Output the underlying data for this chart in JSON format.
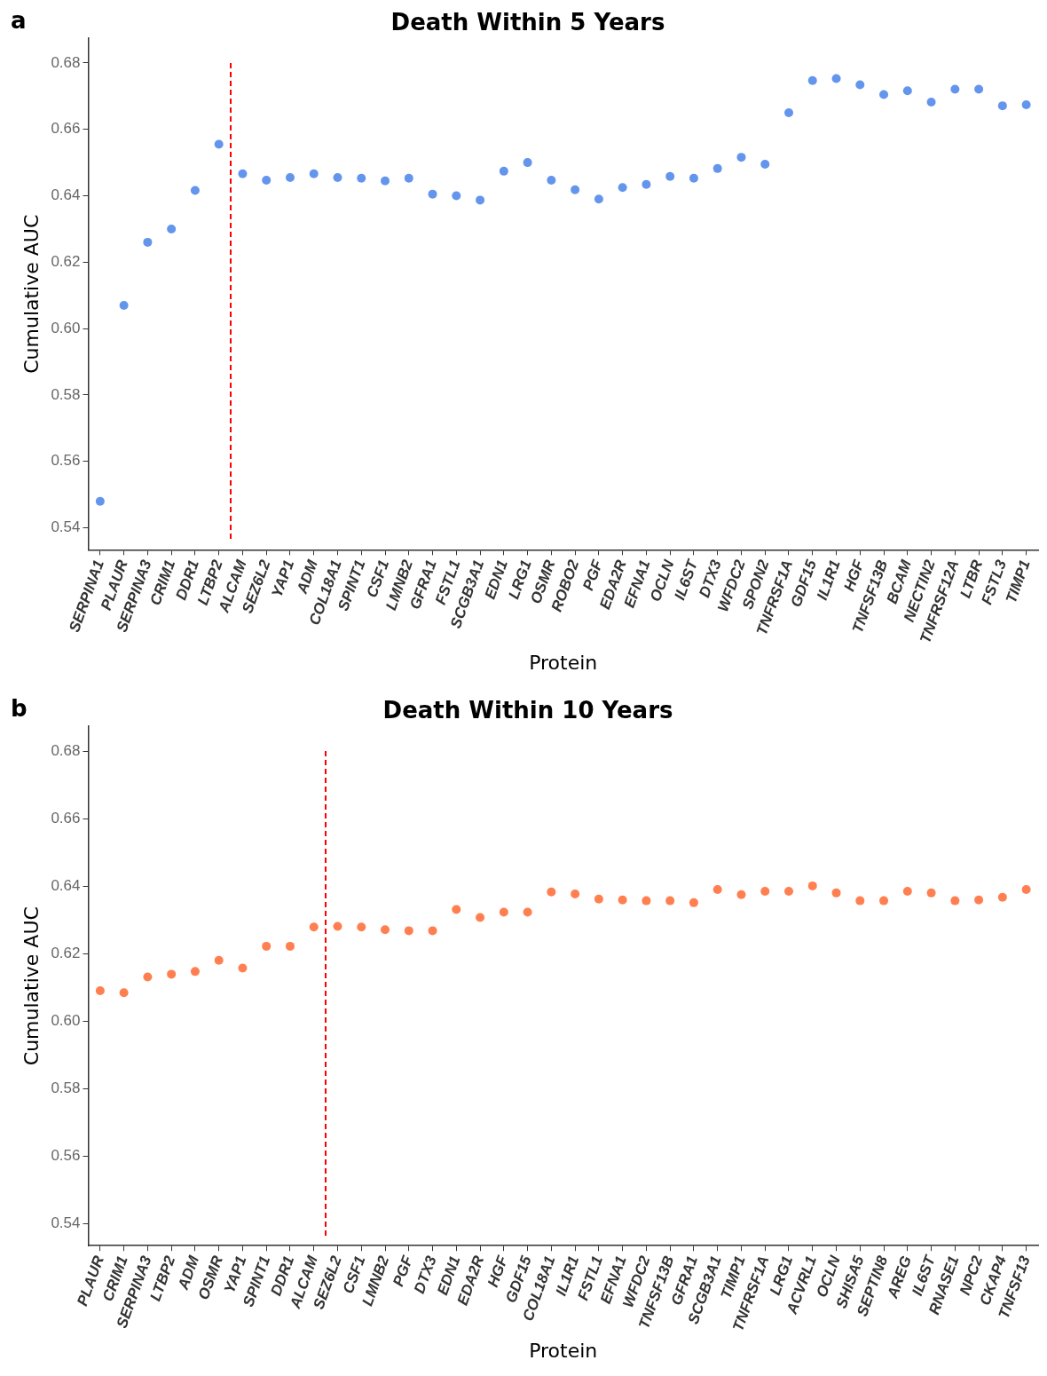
{
  "chart_data": [
    {
      "type": "scatter",
      "title": "Death Within 5 Years",
      "xlabel": "Protein",
      "ylabel": "Cumulative AUC",
      "annotations": [
        "a"
      ],
      "categories": [
        "SERPINA1",
        "PLAUR",
        "SERPINA3",
        "CRIM1",
        "DDR1",
        "LTBP2",
        "ALCAM",
        "SEZ6L2",
        "YAP1",
        "ADM",
        "COL18A1",
        "SPINT1",
        "CSF1",
        "LMNB2",
        "GFRA1",
        "FSTL1",
        "SCGB3A1",
        "EDN1",
        "LRG1",
        "OSMR",
        "ROBO2",
        "PGF",
        "EDA2R",
        "EFNA1",
        "OCLN",
        "IL6ST",
        "DTX3",
        "WFDC2",
        "SPON2",
        "TNFRSF1A",
        "GDF15",
        "IL1R1",
        "HGF",
        "TNFSF13B",
        "BCAM",
        "NECTIN2",
        "TNFRSF12A",
        "LTBR",
        "FSTL3",
        "TIMP1"
      ],
      "series": [
        {
          "color": "#6495ed",
          "values": [
            0.548,
            0.607,
            0.626,
            0.63,
            0.6416,
            0.6555,
            0.6466,
            0.6447,
            0.6455,
            0.6466,
            0.6455,
            0.6453,
            0.6445,
            0.6453,
            0.6405,
            0.64,
            0.6387,
            0.6474,
            0.65,
            0.6447,
            0.6418,
            0.639,
            0.6425,
            0.6434,
            0.6458,
            0.6453,
            0.6482,
            0.6516,
            0.6495,
            0.665,
            0.6747,
            0.6753,
            0.6734,
            0.6705,
            0.6716,
            0.6682,
            0.6721,
            0.6721,
            0.6671,
            0.6674
          ]
        }
      ],
      "ylim": [
        0.5334,
        0.6874
      ],
      "yticks": [
        {
          "value": 0.54,
          "label": "0.54"
        },
        {
          "value": 0.56,
          "label": "0.56"
        },
        {
          "value": 0.58,
          "label": "0.58"
        },
        {
          "value": 0.6,
          "label": "0.60"
        },
        {
          "value": 0.62,
          "label": "0.62"
        },
        {
          "value": 0.64,
          "label": "0.64"
        },
        {
          "value": 0.66,
          "label": "0.66"
        },
        {
          "value": 0.68,
          "label": "0.68"
        }
      ],
      "grid": false,
      "legend": false,
      "marker": "circle"
    },
    {
      "type": "scatter",
      "title": "Death Within 10 Years",
      "xlabel": "Protein",
      "ylabel": "Cumulative AUC",
      "annotations": [
        "b"
      ],
      "categories": [
        "PLAUR",
        "CRIM1",
        "SERPINA3",
        "LTBP2",
        "ADM",
        "OSMR",
        "YAP1",
        "SPINT1",
        "DDR1",
        "ALCAM",
        "SEZ6L2",
        "CSF1",
        "LMNB2",
        "PGF",
        "DTX3",
        "EDN1",
        "EDA2R",
        "HGF",
        "GDF15",
        "COL18A1",
        "IL1R1",
        "FSTL1",
        "EFNA1",
        "WFDC2",
        "TNFSF13B",
        "GFRA1",
        "SCGB3A1",
        "TIMP1",
        "TNFRSF1A",
        "LRG1",
        "ACVRL1",
        "OCLN",
        "SHISA5",
        "SEPTIN8",
        "AREG",
        "IL6ST",
        "RNASE1",
        "NPC2",
        "CKAP4",
        "TNFSF13"
      ],
      "series": [
        {
          "color": "#ff7f50",
          "values": [
            0.609,
            0.6084,
            0.6131,
            0.6139,
            0.6147,
            0.618,
            0.6157,
            0.6222,
            0.6222,
            0.6279,
            0.6281,
            0.6279,
            0.6271,
            0.6268,
            0.6268,
            0.6331,
            0.6307,
            0.6323,
            0.6323,
            0.6383,
            0.6377,
            0.6362,
            0.6359,
            0.6357,
            0.6357,
            0.6351,
            0.639,
            0.6375,
            0.6385,
            0.6385,
            0.6401,
            0.638,
            0.6357,
            0.6357,
            0.6385,
            0.638,
            0.6357,
            0.6359,
            0.6367,
            0.639
          ]
        }
      ],
      "ylim": [
        0.5334,
        0.6874
      ],
      "yticks": [
        {
          "value": 0.54,
          "label": "0.54"
        },
        {
          "value": 0.56,
          "label": "0.56"
        },
        {
          "value": 0.58,
          "label": "0.58"
        },
        {
          "value": 0.6,
          "label": "0.60"
        },
        {
          "value": 0.62,
          "label": "0.62"
        },
        {
          "value": 0.64,
          "label": "0.64"
        },
        {
          "value": 0.66,
          "label": "0.66"
        },
        {
          "value": 0.68,
          "label": "0.68"
        }
      ],
      "grid": false,
      "legend": false,
      "marker": "circle"
    }
  ]
}
